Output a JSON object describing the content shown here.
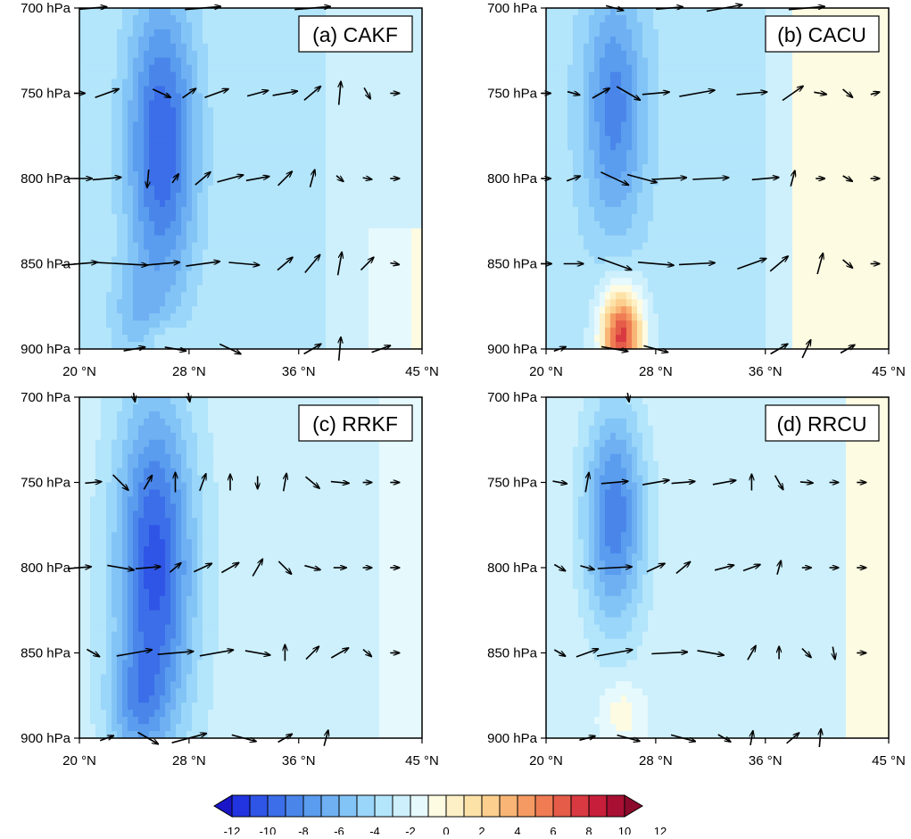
{
  "chart_data": {
    "type": "heatmap",
    "description_free": true,
    "xlim": [
      20,
      45
    ],
    "ylim": [
      700,
      900
    ],
    "x_ticks": [
      20,
      28,
      36,
      45
    ],
    "x_tick_labels": [
      "20 °N",
      "28 °N",
      "36 °N",
      "45 °N"
    ],
    "y_ticks": [
      700,
      750,
      800,
      850,
      900
    ],
    "y_tick_labels": [
      "700 hPa",
      "750 hPa",
      "800 hPa",
      "850 hPa",
      "900 hPa"
    ],
    "colorbar": {
      "levels": [
        -12,
        -11,
        -10,
        -9,
        -8,
        -7,
        -6,
        -5,
        -4,
        -3,
        -2,
        -1,
        0,
        1,
        2,
        3,
        4,
        5,
        6,
        7,
        8,
        9,
        10,
        11,
        12
      ],
      "tick_labels": [
        "-12",
        "-10",
        "-8",
        "-6",
        "-4",
        "-2",
        "0",
        "2",
        "4",
        "6",
        "8",
        "10",
        "12"
      ],
      "colors": [
        "#1a16c8",
        "#2233e0",
        "#2f55e6",
        "#3b6ee8",
        "#4a86ea",
        "#5a9cee",
        "#6eb0f2",
        "#83c4f6",
        "#9ad6f9",
        "#b3e5fb",
        "#cdf0fc",
        "#e6f9fd",
        "#fdfbe2",
        "#fdf0c6",
        "#fde2a8",
        "#fccf8e",
        "#f9b575",
        "#f59a62",
        "#ef7c53",
        "#e55c49",
        "#d93a41",
        "#c71f3b",
        "#a80f33",
        "#8c0a2c"
      ]
    },
    "panels": [
      {
        "label": "(a) CAKF"
      },
      {
        "label": "(b) CACU"
      },
      {
        "label": "(c) RRKF"
      },
      {
        "label": "(d) RRCU"
      }
    ]
  }
}
